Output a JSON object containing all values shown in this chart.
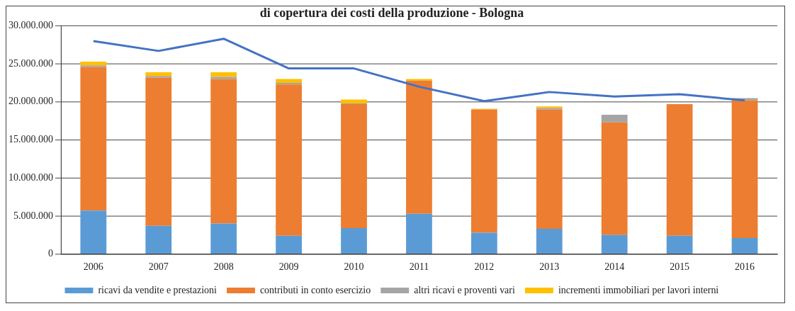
{
  "chart_data": {
    "type": "bar",
    "stacked": true,
    "title": "di copertura dei costi della produzione - Bologna",
    "categories": [
      "2006",
      "2007",
      "2008",
      "2009",
      "2010",
      "2011",
      "2012",
      "2013",
      "2014",
      "2015",
      "2016"
    ],
    "series": [
      {
        "name": "ricavi da vendite e prestazioni",
        "color": "#5b9bd5",
        "values": [
          5700000,
          3700000,
          4000000,
          2400000,
          3400000,
          5300000,
          2800000,
          3300000,
          2500000,
          2400000,
          2100000
        ]
      },
      {
        "name": "contributi in conto esercizio",
        "color": "#ed7d31",
        "values": [
          18900000,
          19500000,
          19000000,
          19900000,
          16300000,
          17500000,
          16200000,
          15700000,
          14800000,
          17300000,
          18100000
        ]
      },
      {
        "name": "altri ricavi e proventi vari",
        "color": "#a5a5a5",
        "values": [
          200000,
          200000,
          300000,
          200000,
          100000,
          null,
          null,
          200000,
          1000000,
          0,
          300000
        ]
      },
      {
        "name": "incrementi immobiliari per lavori interni",
        "color": "#ffc000",
        "values": [
          500000,
          500000,
          600000,
          500000,
          500000,
          200000,
          100000,
          200000,
          0,
          0,
          0
        ]
      },
      {
        "type": "line",
        "color": "#4472c4",
        "values": [
          28000000,
          26700000,
          28300000,
          24400000,
          24400000,
          22000000,
          20100000,
          21300000,
          20700000,
          21000000,
          20200000
        ]
      }
    ],
    "ylim": [
      0,
      30000000
    ],
    "yticks": [
      {
        "value": 0,
        "label": "0"
      },
      {
        "value": 5000000,
        "label": "5.000.000"
      },
      {
        "value": 10000000,
        "label": "10.000.000"
      },
      {
        "value": 15000000,
        "label": "15.000.000"
      },
      {
        "value": 20000000,
        "label": "20.000.000"
      },
      {
        "value": 25000000,
        "label": "25.000.000"
      },
      {
        "value": 30000000,
        "label": "30.000.000"
      }
    ],
    "grid": "y",
    "legend": "bottom"
  }
}
